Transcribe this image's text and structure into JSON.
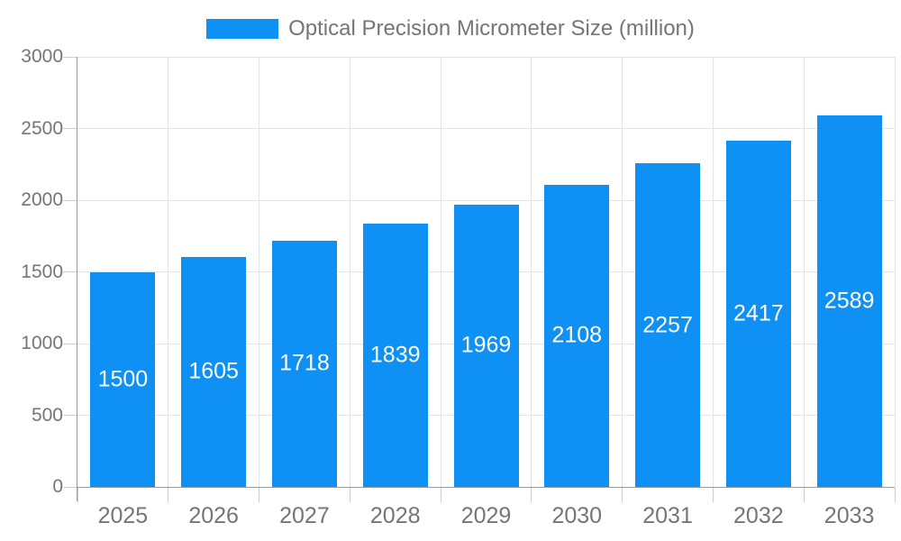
{
  "legend": {
    "series_label": "Optical Precision Micrometer Size (million)"
  },
  "chart_data": {
    "type": "bar",
    "title": "",
    "categories": [
      "2025",
      "2026",
      "2027",
      "2028",
      "2029",
      "2030",
      "2031",
      "2032",
      "2033"
    ],
    "series": [
      {
        "name": "Optical Precision Micrometer Size (million)",
        "values": [
          1500,
          1605,
          1718,
          1839,
          1969,
          2108,
          2257,
          2417,
          2589
        ]
      }
    ],
    "bar_value_labels": [
      1500,
      1605,
      1718,
      1839,
      1969,
      2108,
      2257,
      2417,
      2589
    ],
    "xlabel": "",
    "ylabel": "",
    "ylim": [
      0,
      3000
    ],
    "yticks": [
      0,
      500,
      1000,
      1500,
      2000,
      2500,
      3000
    ],
    "grid": true,
    "legend_position": "top"
  },
  "colors": {
    "bar": "#0e90f5",
    "bar_label": "#ffffff",
    "gridline": "#e4e4e4",
    "axis_line": "#9a9a9a",
    "tick": "#cccccc",
    "axis_text": "#757575",
    "background": "#ffffff"
  }
}
